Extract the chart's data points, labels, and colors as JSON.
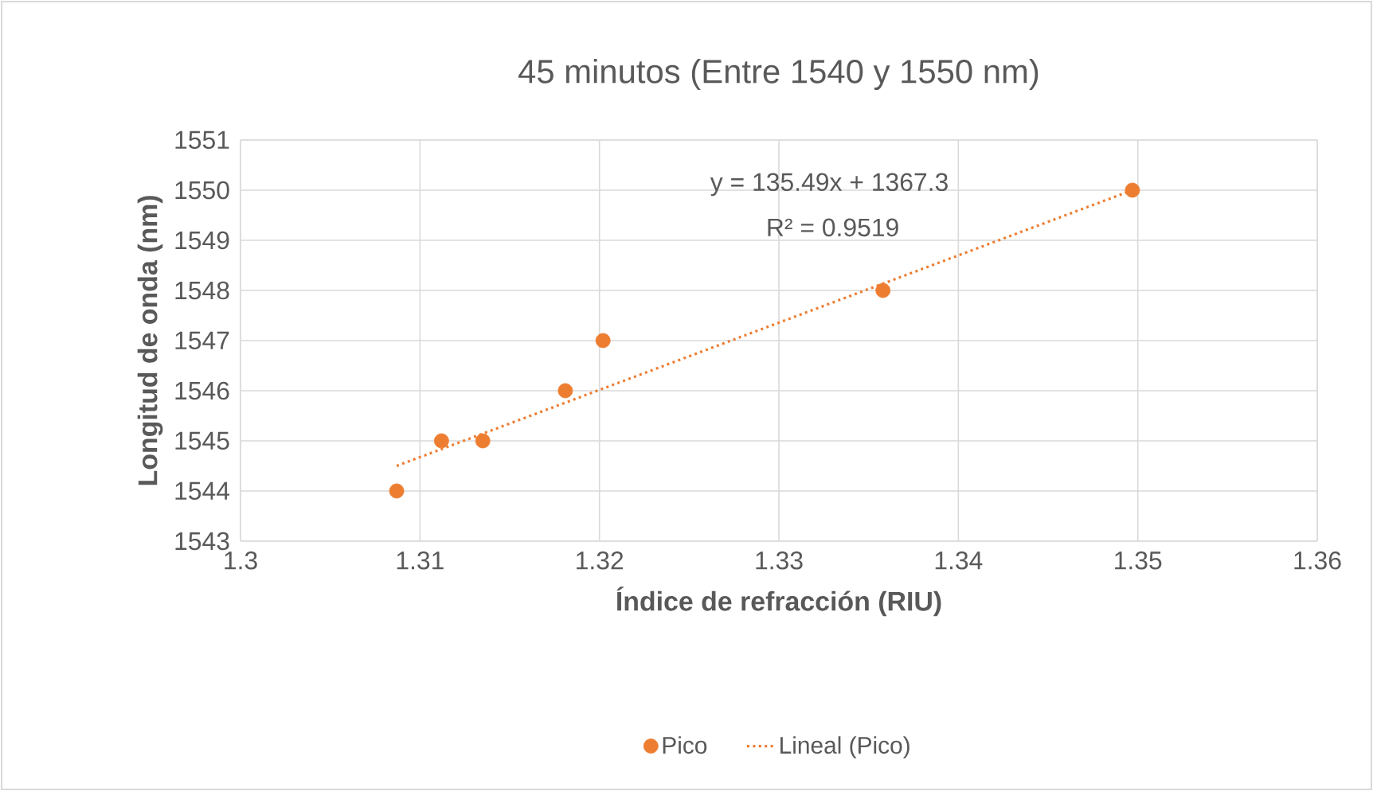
{
  "chart_data": {
    "type": "scatter",
    "title": "45 minutos (Entre 1540 y 1550 nm)",
    "xlabel": "Índice de refracción (RIU)",
    "ylabel": "Longitud de onda (nm)",
    "x": [
      1.3087,
      1.3112,
      1.3135,
      1.3181,
      1.3202,
      1.3358,
      1.3497
    ],
    "series": [
      {
        "name": "Pico",
        "type": "scatter",
        "color": "#ed7d31",
        "marker": "circle",
        "values": [
          1544,
          1545,
          1545,
          1546,
          1547,
          1548,
          1550
        ]
      },
      {
        "name": "Lineal (Pico)",
        "type": "line",
        "color": "#ed7d31",
        "line_style": "dotted",
        "marker": "none",
        "x": [
          1.3087,
          1.3497
        ],
        "values": [
          1544.5,
          1550.0
        ]
      }
    ],
    "xlim": [
      1.3,
      1.36
    ],
    "xticks": [
      1.3,
      1.31,
      1.32,
      1.33,
      1.34,
      1.35,
      1.36
    ],
    "ylim": [
      1543,
      1551
    ],
    "yticks": [
      1543,
      1544,
      1545,
      1546,
      1547,
      1548,
      1549,
      1550,
      1551
    ],
    "annotations": [
      "y = 135.49x + 1367.3",
      "R² = 0.9519"
    ],
    "grid": true,
    "legend": "bottom"
  }
}
